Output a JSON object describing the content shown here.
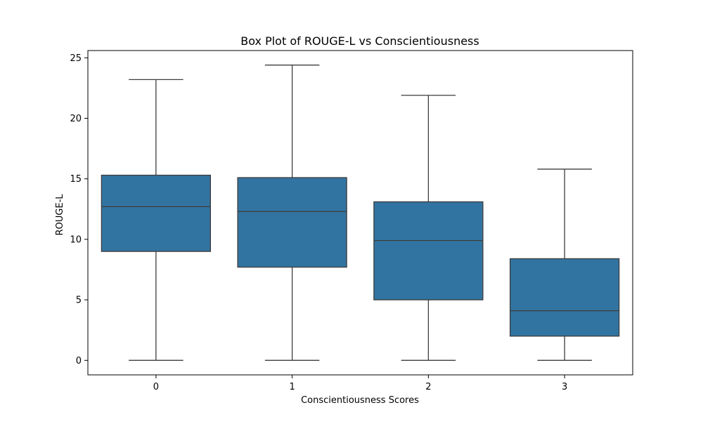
{
  "chart_data": {
    "type": "box",
    "title": "Box Plot of ROUGE-L vs Conscientiousness",
    "xlabel": "Conscientiousness Scores",
    "ylabel": "ROUGE-L",
    "categories": [
      "0",
      "1",
      "2",
      "3"
    ],
    "ylim": [
      -1.2,
      25.6
    ],
    "yticks": [
      0,
      5,
      10,
      15,
      20,
      25
    ],
    "grid": false,
    "boxes": [
      {
        "category": "0",
        "whisker_low": 0,
        "q1": 9.0,
        "median": 12.7,
        "q3": 15.3,
        "whisker_high": 23.2
      },
      {
        "category": "1",
        "whisker_low": 0,
        "q1": 7.7,
        "median": 12.3,
        "q3": 15.1,
        "whisker_high": 24.4
      },
      {
        "category": "2",
        "whisker_low": 0,
        "q1": 5.0,
        "median": 9.9,
        "q3": 13.1,
        "whisker_high": 21.9
      },
      {
        "category": "3",
        "whisker_low": 0,
        "q1": 2.0,
        "median": 4.1,
        "q3": 8.4,
        "whisker_high": 15.8
      }
    ],
    "colors": {
      "box_fill": "#3274a1",
      "line": "#3d3d3d",
      "axis": "#000000"
    }
  }
}
